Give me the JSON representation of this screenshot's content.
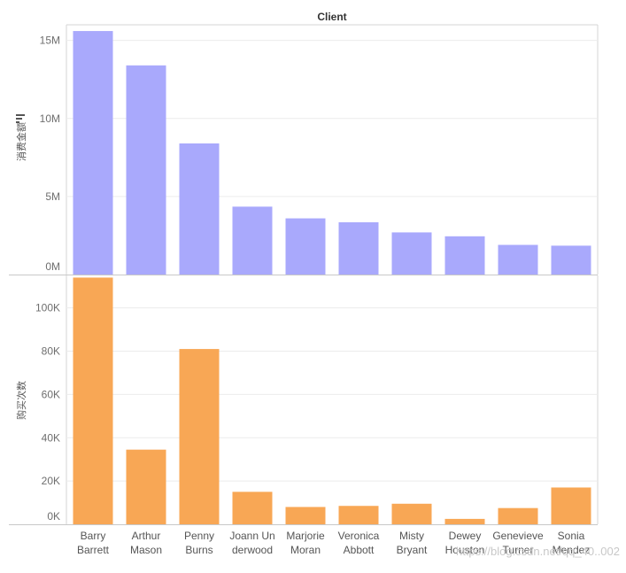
{
  "chart_data": {
    "type": "bar",
    "header": "Client",
    "categories": [
      [
        "Barry",
        "Barrett"
      ],
      [
        "Arthur",
        "Mason"
      ],
      [
        "Penny",
        "Burns"
      ],
      [
        "Joann Un",
        "derwood"
      ],
      [
        "Marjorie",
        "Moran"
      ],
      [
        "Veronica",
        "Abbott"
      ],
      [
        "Misty",
        "Bryant"
      ],
      [
        "Dewey",
        "Houston"
      ],
      [
        "Genevieve",
        "Turner"
      ],
      [
        "Sonia",
        "Mendez"
      ]
    ],
    "panels": [
      {
        "ylabel": "消费金额",
        "color": "#a9a9fc",
        "ylim": [
          0,
          16000000
        ],
        "ticks": [
          0,
          5000000,
          10000000,
          15000000
        ],
        "tick_labels": [
          "0M",
          "5M",
          "10M",
          "15M"
        ],
        "values": [
          15600000,
          13400000,
          8400000,
          4350000,
          3600000,
          3350000,
          2700000,
          2450000,
          1900000,
          1850000
        ]
      },
      {
        "ylabel": "购买次数",
        "color": "#f8a755",
        "ylim": [
          0,
          115000
        ],
        "ticks": [
          0,
          20000,
          40000,
          60000,
          80000,
          100000
        ],
        "tick_labels": [
          "0K",
          "20K",
          "40K",
          "60K",
          "80K",
          "100K"
        ],
        "values": [
          114000,
          34500,
          81000,
          15000,
          8000,
          8500,
          9500,
          2500,
          7500,
          17000
        ]
      }
    ],
    "grid": true,
    "legend": "none"
  },
  "watermark": "https://blog.csdn.net/qq_40..002"
}
